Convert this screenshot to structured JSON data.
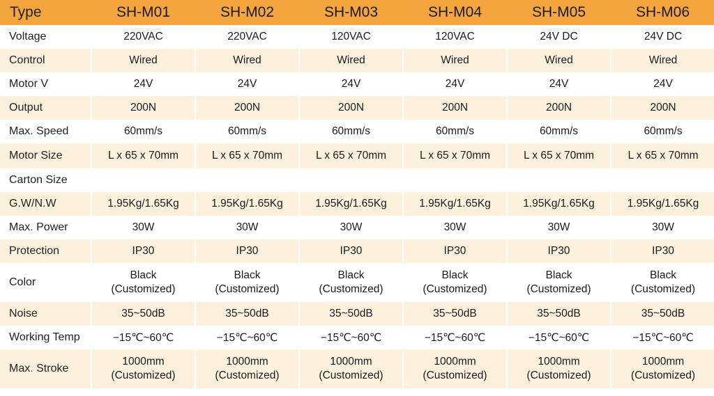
{
  "header": {
    "label": "Type",
    "models": [
      "SH-M01",
      "SH-M02",
      "SH-M03",
      "SH-M04",
      "SH-M05",
      "SH-M06"
    ]
  },
  "rows": [
    {
      "label": "Voltage",
      "values": [
        "220VAC",
        "220VAC",
        "120VAC",
        "120VAC",
        "24V DC",
        "24V DC"
      ]
    },
    {
      "label": "Control",
      "values": [
        "Wired",
        "Wired",
        "Wired",
        "Wired",
        "Wired",
        "Wired"
      ]
    },
    {
      "label": "Motor V",
      "values": [
        "24V",
        "24V",
        "24V",
        "24V",
        "24V",
        "24V"
      ]
    },
    {
      "label": "Output",
      "values": [
        "200N",
        "200N",
        "200N",
        "200N",
        "200N",
        "200N"
      ]
    },
    {
      "label": "Max. Speed",
      "values": [
        "60mm/s",
        "60mm/s",
        "60mm/s",
        "60mm/s",
        "60mm/s",
        "60mm/s"
      ]
    },
    {
      "label": "Motor Size",
      "values": [
        "L x 65 x 70mm",
        "L x 65 x 70mm",
        "L x 65 x 70mm",
        "L x 65 x 70mm",
        "L x 65 x 70mm",
        "L x 65 x 70mm"
      ]
    },
    {
      "label": "Carton Size",
      "values": [
        "",
        "",
        "",
        "",
        "",
        ""
      ]
    },
    {
      "label": "G.W/N.W",
      "values": [
        "1.95Kg/1.65Kg",
        "1.95Kg/1.65Kg",
        "1.95Kg/1.65Kg",
        "1.95Kg/1.65Kg",
        "1.95Kg/1.65Kg",
        "1.95Kg/1.65Kg"
      ]
    },
    {
      "label": "Max. Power",
      "values": [
        "30W",
        "30W",
        "30W",
        "30W",
        "30W",
        "30W"
      ]
    },
    {
      "label": "Protection",
      "values": [
        "IP30",
        "IP30",
        "IP30",
        "IP30",
        "IP30",
        "IP30"
      ]
    },
    {
      "label": "Color",
      "values": [
        [
          "Black",
          "(Customized)"
        ],
        [
          "Black",
          "(Customized)"
        ],
        [
          "Black",
          "(Customized)"
        ],
        [
          "Black",
          "(Customized)"
        ],
        [
          "Black",
          "(Customized)"
        ],
        [
          "Black",
          "(Customized)"
        ]
      ]
    },
    {
      "label": "Noise",
      "values": [
        "35~50dB",
        "35~50dB",
        "35~50dB",
        "35~50dB",
        "35~50dB",
        "35~50dB"
      ]
    },
    {
      "label": "Working Temp",
      "values": [
        "−15℃~60℃",
        "−15℃~60℃",
        "−15℃~60℃",
        "−15℃~60℃",
        "−15℃~60℃",
        "−15℃~60℃"
      ]
    },
    {
      "label": "Max. Stroke",
      "values": [
        [
          "1000mm",
          "(Customized)"
        ],
        [
          "1000mm",
          "(Customized)"
        ],
        [
          "1000mm",
          "(Customized)"
        ],
        [
          "1000mm",
          "(Customized)"
        ],
        [
          "1000mm",
          "(Customized)"
        ],
        [
          "1000mm",
          "(Customized)"
        ]
      ]
    }
  ],
  "colors": {
    "header_bg": "#f5a53d",
    "band_light": "#fdf1de",
    "band_white": "#ffffff"
  }
}
